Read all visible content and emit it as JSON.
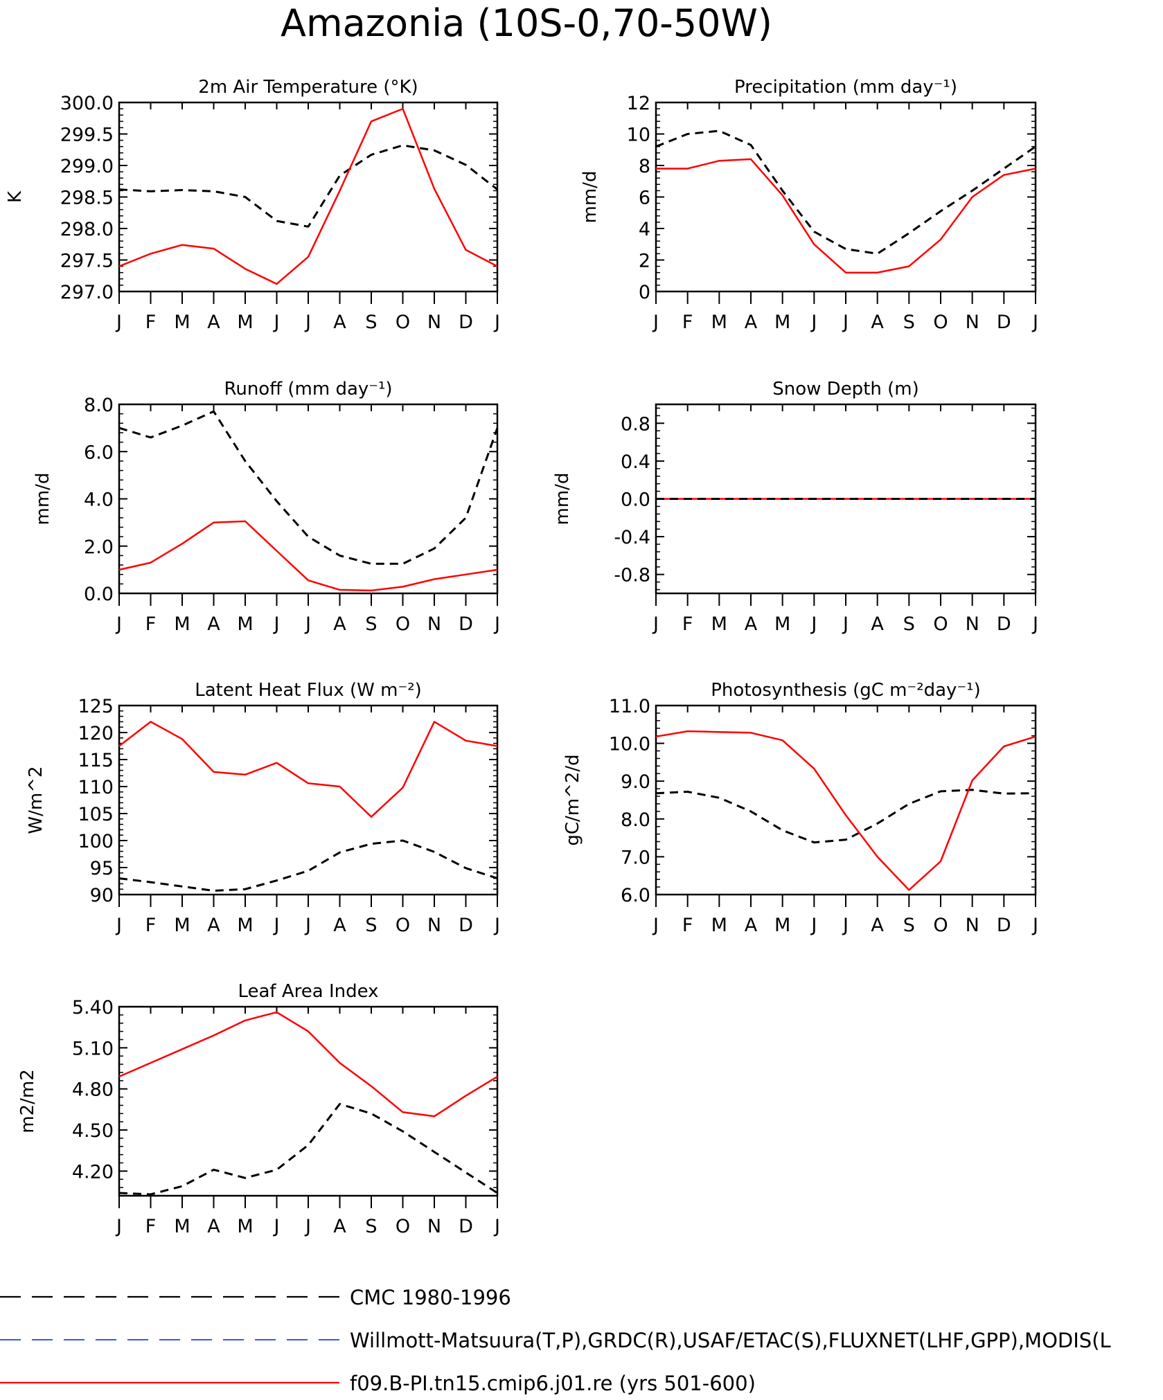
{
  "title": "Amazonia (10S-0,70-50W)",
  "months": [
    "J",
    "F",
    "M",
    "A",
    "M",
    "J",
    "J",
    "A",
    "S",
    "O",
    "N",
    "D",
    "J"
  ],
  "legend": [
    {
      "label": "CMC 1980-1996",
      "color": "#000000",
      "style": "dashed"
    },
    {
      "label": "Willmott-Matsuura(T,P),GRDC(R),USAF/ETAC(S),FLUXNET(LHF,GPP),MODIS(L",
      "color": "#3355ff",
      "style": "dashed"
    },
    {
      "label": "f09.B-PI.tn15.cmip6.j01.re (yrs 501-600)",
      "color": "#ff0000",
      "style": "solid"
    }
  ],
  "chart_data": [
    {
      "type": "line",
      "title": "2m Air Temperature (°K)",
      "ylabel": "K",
      "ylim": [
        297.0,
        300.0
      ],
      "yticks": [
        297.0,
        297.5,
        298.0,
        298.5,
        299.0,
        299.5,
        300.0
      ],
      "ytick_labels": [
        "297.0",
        "297.5",
        "298.0",
        "298.5",
        "299.0",
        "299.5",
        "300.0"
      ],
      "x": [
        "J",
        "F",
        "M",
        "A",
        "M",
        "J",
        "J",
        "A",
        "S",
        "O",
        "N",
        "D",
        "J"
      ],
      "series": [
        {
          "color": "#000000",
          "style": "dashed",
          "values": [
            298.62,
            298.59,
            298.61,
            298.59,
            298.5,
            298.12,
            298.03,
            298.84,
            299.17,
            299.32,
            299.24,
            299.01,
            298.62
          ]
        },
        {
          "color": "#ff0000",
          "style": "solid",
          "values": [
            297.4,
            297.6,
            297.74,
            297.68,
            297.36,
            297.12,
            297.55,
            298.6,
            299.7,
            299.9,
            298.63,
            297.66,
            297.4
          ]
        }
      ]
    },
    {
      "type": "line",
      "title": "Precipitation (mm day⁻¹)",
      "ylabel": "mm/d",
      "ylim": [
        0,
        12
      ],
      "yticks": [
        0,
        2,
        4,
        6,
        8,
        10,
        12
      ],
      "ytick_labels": [
        "0",
        "2",
        "4",
        "6",
        "8",
        "10",
        "12"
      ],
      "x": [
        "J",
        "F",
        "M",
        "A",
        "M",
        "J",
        "J",
        "A",
        "S",
        "O",
        "N",
        "D",
        "J"
      ],
      "series": [
        {
          "color": "#000000",
          "style": "dashed",
          "values": [
            9.2,
            10.0,
            10.2,
            9.3,
            6.4,
            3.8,
            2.7,
            2.4,
            3.7,
            5.1,
            6.4,
            7.8,
            9.2
          ]
        },
        {
          "color": "#ff0000",
          "style": "solid",
          "values": [
            7.8,
            7.8,
            8.3,
            8.4,
            6.1,
            3.0,
            1.2,
            1.2,
            1.6,
            3.3,
            6.0,
            7.4,
            7.8
          ]
        }
      ]
    },
    {
      "type": "line",
      "title": "Runoff (mm day⁻¹)",
      "ylabel": "mm/d",
      "ylim": [
        0,
        8
      ],
      "yticks": [
        0,
        2,
        4,
        6,
        8
      ],
      "ytick_labels": [
        "0.0",
        "2.0",
        "4.0",
        "6.0",
        "8.0"
      ],
      "x": [
        "J",
        "F",
        "M",
        "A",
        "M",
        "J",
        "J",
        "A",
        "S",
        "O",
        "N",
        "D",
        "J"
      ],
      "series": [
        {
          "color": "#000000",
          "style": "dashed",
          "values": [
            7.0,
            6.6,
            7.1,
            7.7,
            5.6,
            3.9,
            2.4,
            1.6,
            1.25,
            1.25,
            1.9,
            3.2,
            7.0
          ]
        },
        {
          "color": "#ff0000",
          "style": "solid",
          "values": [
            1.0,
            1.3,
            2.1,
            3.0,
            3.05,
            1.8,
            0.55,
            0.15,
            0.12,
            0.28,
            0.6,
            0.8,
            1.0
          ]
        }
      ]
    },
    {
      "type": "line",
      "title": "Snow Depth (m)",
      "ylabel": "mm/d",
      "ylim": [
        -1.0,
        1.0
      ],
      "yticks": [
        -0.8,
        -0.4,
        0.0,
        0.4,
        0.8
      ],
      "ytick_labels": [
        "-0.8",
        "-0.4",
        "0.0",
        "0.4",
        "0.8"
      ],
      "x": [
        "J",
        "F",
        "M",
        "A",
        "M",
        "J",
        "J",
        "A",
        "S",
        "O",
        "N",
        "D",
        "J"
      ],
      "series": [
        {
          "color": "#ff0000",
          "style": "solid",
          "values": [
            0,
            0,
            0,
            0,
            0,
            0,
            0,
            0,
            0,
            0,
            0,
            0,
            0
          ]
        },
        {
          "color": "#000000",
          "style": "dashed",
          "values": [
            0,
            0,
            0,
            0,
            0,
            0,
            0,
            0,
            0,
            0,
            0,
            0,
            0
          ]
        }
      ]
    },
    {
      "type": "line",
      "title": "Latent Heat Flux (W m⁻²)",
      "ylabel": "W/m^2",
      "ylim": [
        90,
        125
      ],
      "yticks": [
        90,
        95,
        100,
        105,
        110,
        115,
        120,
        125
      ],
      "ytick_labels": [
        "90",
        "95",
        "100",
        "105",
        "110",
        "115",
        "120",
        "125"
      ],
      "x": [
        "J",
        "F",
        "M",
        "A",
        "M",
        "J",
        "J",
        "A",
        "S",
        "O",
        "N",
        "D",
        "J"
      ],
      "series": [
        {
          "color": "#000000",
          "style": "dashed",
          "values": [
            93.0,
            92.3,
            91.5,
            90.7,
            91.0,
            92.6,
            94.4,
            97.8,
            99.4,
            100.0,
            97.9,
            94.9,
            93.0
          ]
        },
        {
          "color": "#ff0000",
          "style": "solid",
          "values": [
            117.5,
            122.0,
            118.8,
            112.7,
            112.2,
            114.4,
            110.6,
            110.0,
            104.4,
            109.8,
            122.0,
            118.5,
            117.5
          ]
        }
      ]
    },
    {
      "type": "line",
      "title": "Photosynthesis (gC m⁻²day⁻¹)",
      "ylabel": "gC/m^2/d",
      "ylim": [
        6.0,
        11.0
      ],
      "yticks": [
        6.0,
        7.0,
        8.0,
        9.0,
        10.0,
        11.0
      ],
      "ytick_labels": [
        "6.0",
        "7.0",
        "8.0",
        "9.0",
        "10.0",
        "11.0"
      ],
      "x": [
        "J",
        "F",
        "M",
        "A",
        "M",
        "J",
        "J",
        "A",
        "S",
        "O",
        "N",
        "D",
        "J"
      ],
      "series": [
        {
          "color": "#000000",
          "style": "dashed",
          "values": [
            8.68,
            8.72,
            8.56,
            8.2,
            7.7,
            7.38,
            7.45,
            7.88,
            8.4,
            8.73,
            8.77,
            8.67,
            8.68
          ]
        },
        {
          "color": "#ff0000",
          "style": "solid",
          "values": [
            10.18,
            10.32,
            10.3,
            10.28,
            10.08,
            9.33,
            8.1,
            7.0,
            6.12,
            6.88,
            9.02,
            9.92,
            10.18
          ]
        }
      ]
    },
    {
      "type": "line",
      "title": "Leaf Area Index",
      "ylabel": "m2/m2",
      "ylim": [
        4.02,
        5.4
      ],
      "yticks": [
        4.2,
        4.5,
        4.8,
        5.1,
        5.4
      ],
      "ytick_labels": [
        "4.20",
        "4.50",
        "4.80",
        "5.10",
        "5.40"
      ],
      "x": [
        "J",
        "F",
        "M",
        "A",
        "M",
        "J",
        "J",
        "A",
        "S",
        "O",
        "N",
        "D",
        "J"
      ],
      "series": [
        {
          "color": "#000000",
          "style": "dashed",
          "values": [
            4.04,
            4.03,
            4.09,
            4.21,
            4.15,
            4.21,
            4.39,
            4.69,
            4.62,
            4.49,
            4.34,
            4.19,
            4.04
          ]
        },
        {
          "color": "#ff0000",
          "style": "solid",
          "values": [
            4.89,
            4.99,
            5.09,
            5.19,
            5.3,
            5.36,
            5.22,
            4.99,
            4.82,
            4.63,
            4.6,
            4.75,
            4.89
          ]
        }
      ]
    }
  ]
}
